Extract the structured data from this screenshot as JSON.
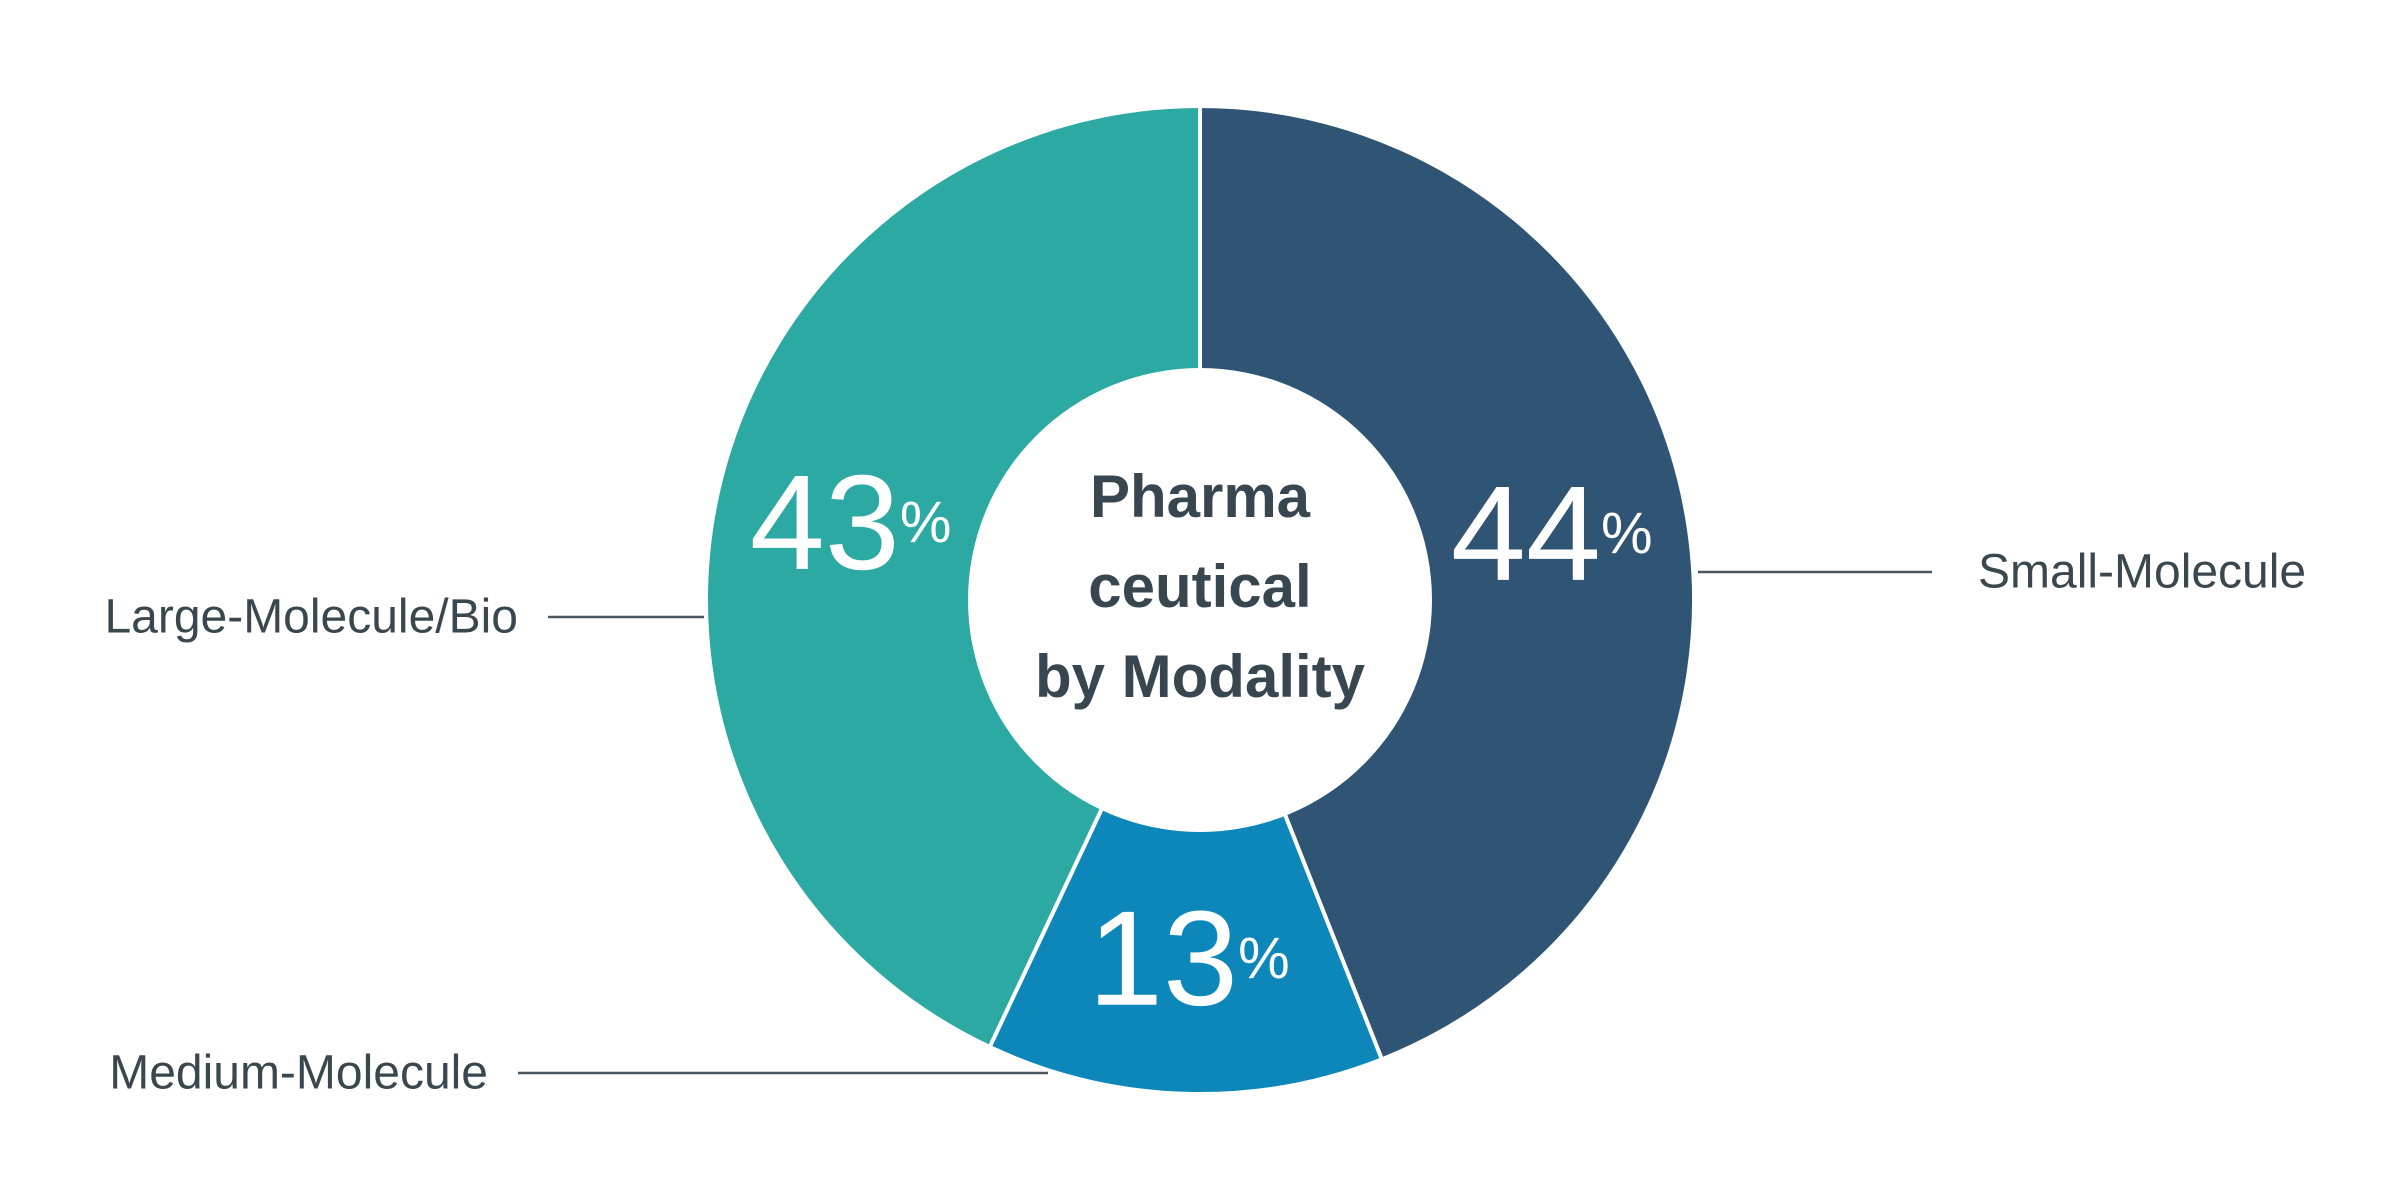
{
  "chart_data": {
    "type": "pie",
    "subtype": "donut",
    "title": "Pharmaceutical by Modality",
    "title_lines": [
      "Pharma",
      "ceutical",
      "by Modality"
    ],
    "unit": "%",
    "direction": "clockwise",
    "start_angle": "12-o'clock",
    "legend_position": "outside-callouts",
    "slices": [
      {
        "label": "Small-Molecule",
        "value": 44,
        "color": "#2F5474",
        "callout_side": "right"
      },
      {
        "label": "Medium-Molecule",
        "value": 13,
        "color": "#0D87BA",
        "callout_side": "bottom-left"
      },
      {
        "label": "Large-Molecule/Bio",
        "value": 43,
        "color": "#2CA9A3",
        "callout_side": "left"
      }
    ]
  },
  "styles": {
    "background": "#FFFFFF",
    "title_color": "#37464F",
    "callout_text_color": "#3A474F",
    "leader_line_color": "#4A555E",
    "value_text_color": "#FFFFFF",
    "slice_gap_color": "#FFFFFF"
  }
}
